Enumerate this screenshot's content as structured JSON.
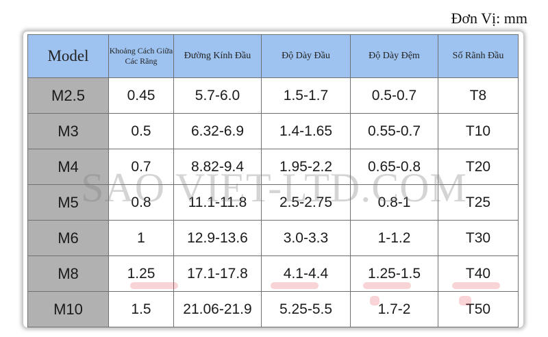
{
  "unit_label": "Đơn Vị: mm",
  "table": {
    "headers": [
      "Model",
      "Khoảng Cách Giữa Các Răng",
      "Đường Kính Đầu",
      "Độ Dày Đầu",
      "Độ Dày Đệm",
      "Số Rãnh Đầu"
    ],
    "rows": [
      [
        "M2.5",
        "0.45",
        "5.7-6.0",
        "1.5-1.7",
        "0.5-0.7",
        "T8"
      ],
      [
        "M3",
        "0.5",
        "6.32-6.9",
        "1.4-1.65",
        "0.55-0.7",
        "T10"
      ],
      [
        "M4",
        "0.7",
        "8.82-9.4",
        "1.95-2.2",
        "0.65-0.8",
        "T20"
      ],
      [
        "M5",
        "0.8",
        "11.1-11.8",
        "2.5-2.75",
        "0.8-1",
        "T25"
      ],
      [
        "M6",
        "1",
        "12.9-13.6",
        "3.0-3.3",
        "1-1.2",
        "T30"
      ],
      [
        "M8",
        "1.25",
        "17.1-17.8",
        "4.1-4.4",
        "1.25-1.5",
        "T40"
      ],
      [
        "M10",
        "1.5",
        "21.06-21.9",
        "5.25-5.5",
        "1.7-2",
        "T50"
      ]
    ]
  },
  "watermark": "SAO VIET-LTD.COM",
  "colors": {
    "header_bg": "#9ec3f0",
    "model_col_bg": "#b1b1b1",
    "border": "#6f6f6f"
  }
}
